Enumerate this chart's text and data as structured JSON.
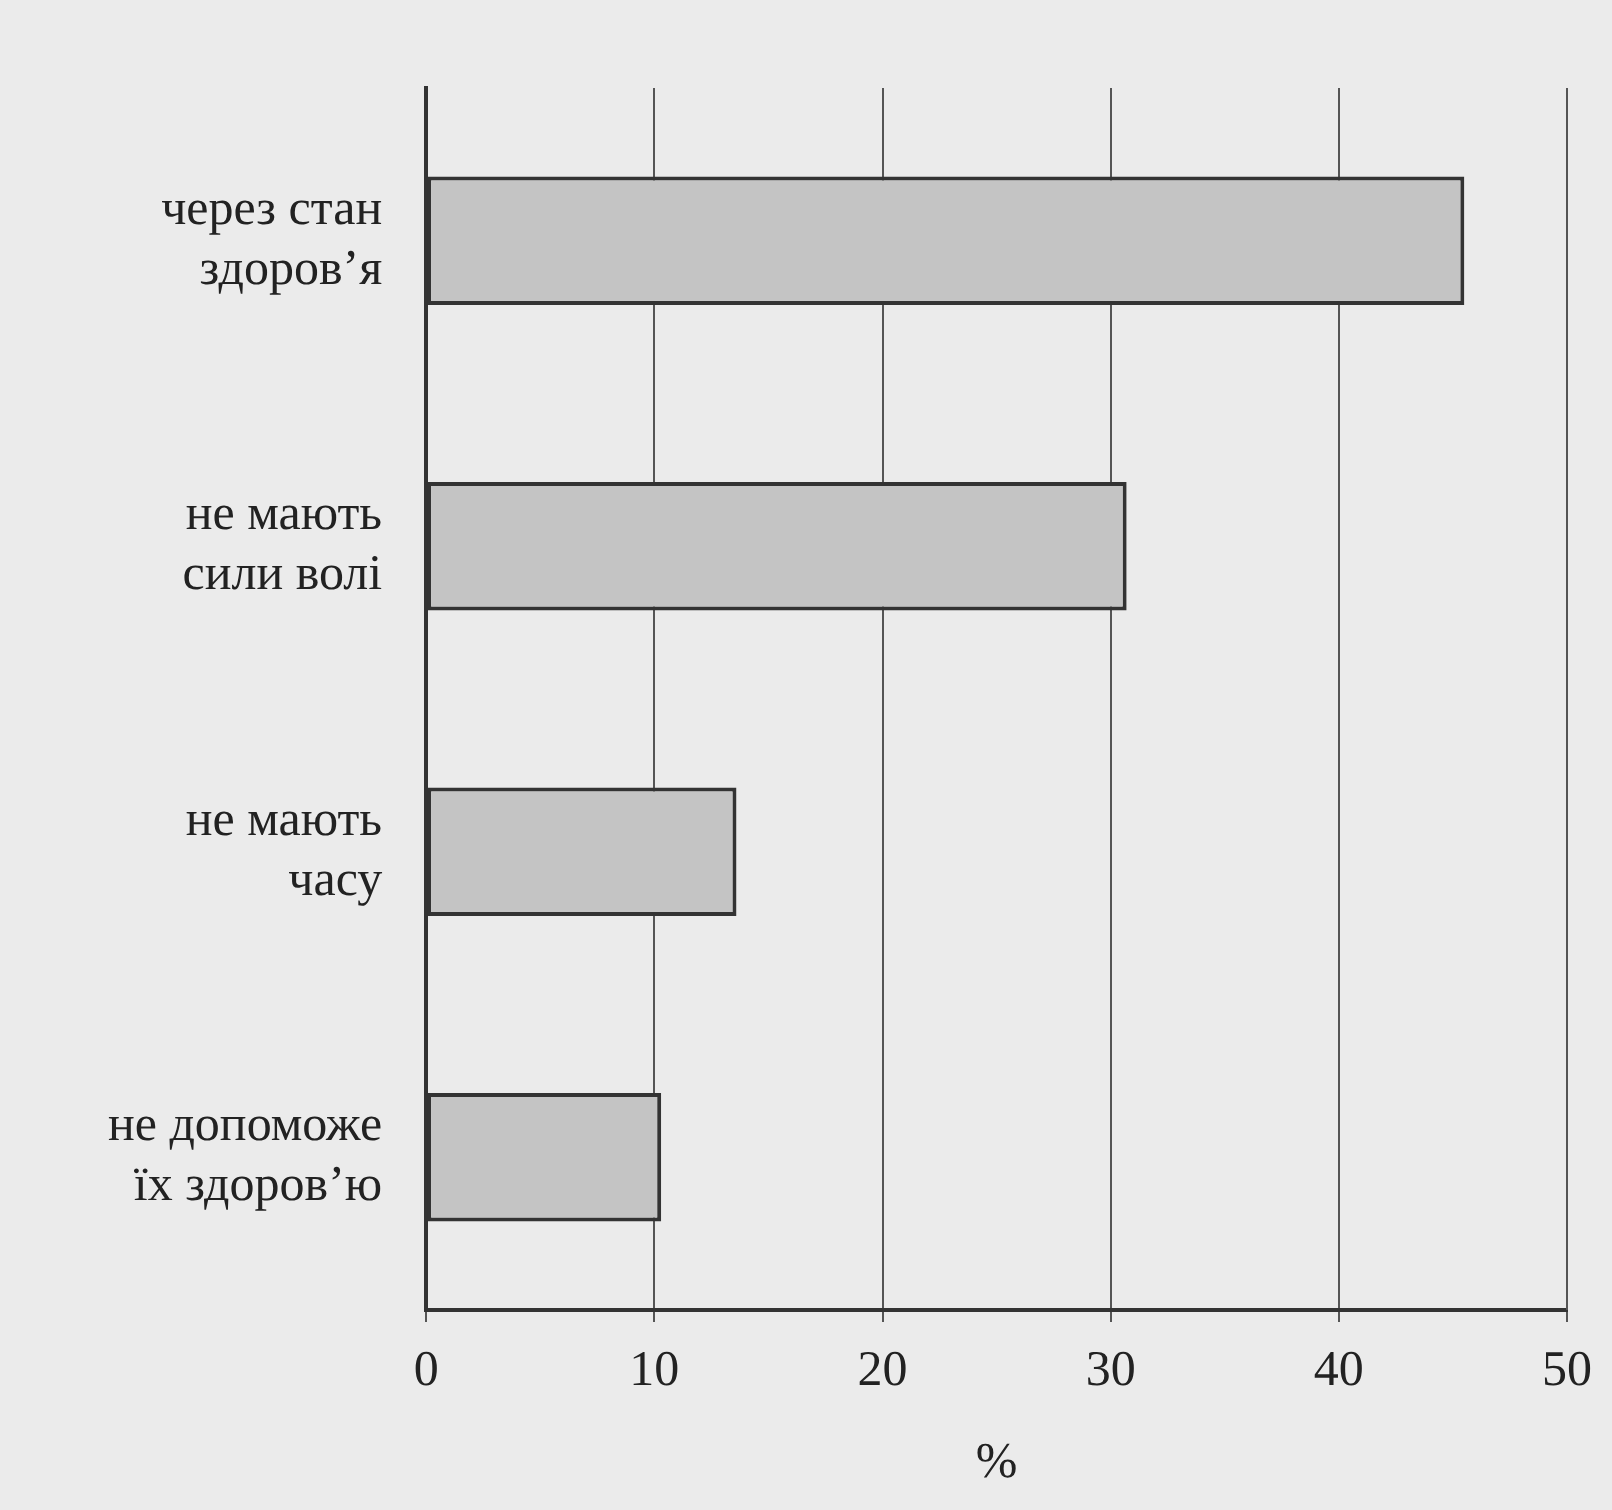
{
  "chart_data": {
    "type": "bar",
    "orientation": "horizontal",
    "xlabel": "%",
    "categories": [
      "через стан\nздоров’я",
      "не мають\nсили волі",
      "не мають\nчасу",
      "не допоможе\nїх здоров’ю"
    ],
    "values": [
      45.5,
      30.7,
      13.6,
      10.3
    ],
    "color": "#c4c4c4",
    "xlim": [
      0,
      50
    ],
    "xticks": [
      0,
      10,
      20,
      30,
      40,
      50
    ],
    "grid": "x",
    "legend": false
  }
}
